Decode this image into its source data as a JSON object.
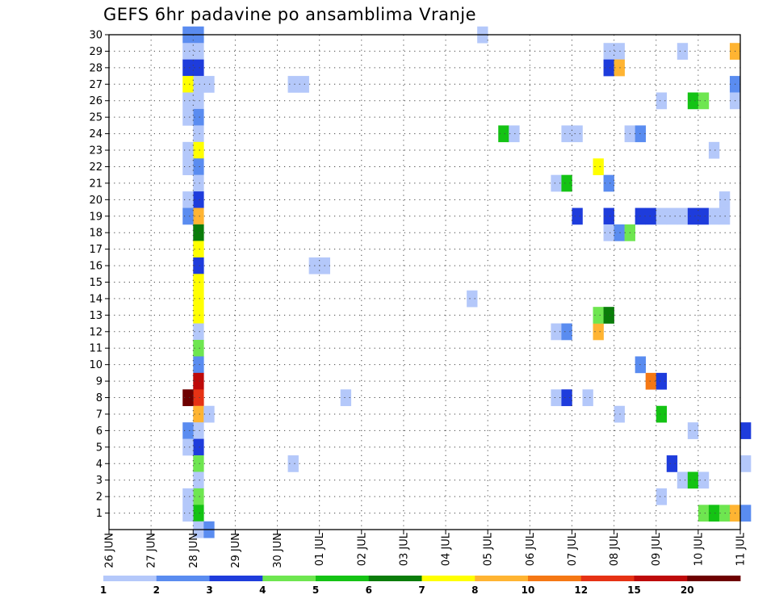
{
  "chart_data": {
    "type": "heatmap",
    "title": "GEFS 6hr padavine po ansamblima Vranje",
    "x_tick_labels": [
      "26 JUN",
      "27 JUN",
      "28 JUN",
      "29 JUN",
      "30 JUN",
      "01 JUL",
      "02 JUL",
      "03 JUL",
      "04 JUL",
      "05 JUL",
      "06 JUL",
      "07 JUL",
      "08 JUL",
      "09 JUL",
      "10 JUL",
      "11 JUL"
    ],
    "y_tick_labels": [
      "1",
      "2",
      "3",
      "4",
      "5",
      "6",
      "7",
      "8",
      "9",
      "10",
      "11",
      "12",
      "13",
      "14",
      "15",
      "16",
      "17",
      "18",
      "19",
      "20",
      "21",
      "22",
      "23",
      "24",
      "25",
      "26",
      "27",
      "28",
      "29",
      "30"
    ],
    "xlabel": "",
    "ylabel": "",
    "ylim": [
      0,
      30
    ],
    "grid": true,
    "steps_per_day": 4,
    "color_levels": [
      {
        "label": "1",
        "color": "#b4c8fa"
      },
      {
        "label": "2",
        "color": "#5a8cf0"
      },
      {
        "label": "3",
        "color": "#1e3cdc"
      },
      {
        "label": "4",
        "color": "#6ee650"
      },
      {
        "label": "5",
        "color": "#14c314"
      },
      {
        "label": "6",
        "color": "#0a7d0a"
      },
      {
        "label": "7",
        "color": "#ffff00"
      },
      {
        "label": "8",
        "color": "#ffb432"
      },
      {
        "label": "10",
        "color": "#f57814"
      },
      {
        "label": "12",
        "color": "#e63214"
      },
      {
        "label": "15",
        "color": "#be0a0a"
      },
      {
        "label": "20",
        "color": "#6e0000"
      }
    ],
    "cells": [
      [
        30,
        8,
        1
      ],
      [
        30,
        7,
        1
      ],
      [
        29,
        8,
        0
      ],
      [
        29,
        7,
        0
      ],
      [
        28,
        8,
        2
      ],
      [
        28,
        7,
        2
      ],
      [
        27,
        8,
        0
      ],
      [
        27,
        7,
        6
      ],
      [
        26,
        8,
        0
      ],
      [
        26,
        7,
        0
      ],
      [
        25,
        8,
        1
      ],
      [
        25,
        7,
        0
      ],
      [
        24,
        8,
        0
      ],
      [
        23,
        8,
        6
      ],
      [
        23,
        7,
        0
      ],
      [
        22,
        8,
        1
      ],
      [
        22,
        7,
        0
      ],
      [
        21,
        8,
        0
      ],
      [
        20,
        8,
        2
      ],
      [
        20,
        7,
        0
      ],
      [
        19,
        8,
        7
      ],
      [
        19,
        7,
        1
      ],
      [
        18,
        8,
        5
      ],
      [
        17,
        8,
        6
      ],
      [
        16,
        8,
        2
      ],
      [
        15,
        8,
        6
      ],
      [
        14,
        8,
        6
      ],
      [
        13,
        8,
        6
      ],
      [
        12,
        8,
        0
      ],
      [
        11,
        8,
        3
      ],
      [
        10,
        8,
        1
      ],
      [
        9,
        8,
        10
      ],
      [
        8,
        8,
        9
      ],
      [
        8,
        7,
        11
      ],
      [
        7,
        8,
        7
      ],
      [
        6,
        8,
        0
      ],
      [
        6,
        7,
        1
      ],
      [
        5,
        8,
        2
      ],
      [
        5,
        7,
        0
      ],
      [
        4,
        8,
        3
      ],
      [
        3,
        8,
        0
      ],
      [
        2,
        8,
        3
      ],
      [
        2,
        7,
        0
      ],
      [
        1,
        8,
        4
      ],
      [
        1,
        7,
        0
      ],
      [
        0,
        8,
        0
      ],
      [
        0,
        9,
        1
      ],
      [
        27,
        9,
        0
      ],
      [
        7,
        9,
        0
      ],
      [
        27,
        17,
        0
      ],
      [
        27,
        18,
        0
      ],
      [
        4,
        17,
        0
      ],
      [
        16,
        19,
        0
      ],
      [
        16,
        20,
        0
      ],
      [
        8,
        22,
        0
      ],
      [
        14,
        34,
        0
      ],
      [
        30,
        35,
        0
      ],
      [
        24,
        37,
        4
      ],
      [
        24,
        38,
        0
      ],
      [
        21,
        42,
        0
      ],
      [
        21,
        43,
        4
      ],
      [
        12,
        42,
        0
      ],
      [
        12,
        43,
        1
      ],
      [
        8,
        42,
        0
      ],
      [
        8,
        43,
        2
      ],
      [
        24,
        43,
        0
      ],
      [
        24,
        44,
        0
      ],
      [
        19,
        44,
        2
      ],
      [
        8,
        45,
        0
      ],
      [
        22,
        46,
        6
      ],
      [
        12,
        46,
        7
      ],
      [
        13,
        46,
        3
      ],
      [
        13,
        47,
        5
      ],
      [
        29,
        47,
        0
      ],
      [
        29,
        48,
        0
      ],
      [
        28,
        47,
        2
      ],
      [
        28,
        48,
        7
      ],
      [
        21,
        47,
        1
      ],
      [
        19,
        47,
        2
      ],
      [
        18,
        47,
        0
      ],
      [
        18,
        48,
        1
      ],
      [
        18,
        49,
        3
      ],
      [
        7,
        48,
        0
      ],
      [
        24,
        49,
        0
      ],
      [
        24,
        50,
        1
      ],
      [
        19,
        50,
        2
      ],
      [
        19,
        51,
        2
      ],
      [
        19,
        52,
        0
      ],
      [
        19,
        53,
        0
      ],
      [
        19,
        54,
        0
      ],
      [
        19,
        55,
        2
      ],
      [
        19,
        56,
        2
      ],
      [
        19,
        57,
        0
      ],
      [
        10,
        50,
        1
      ],
      [
        9,
        51,
        8
      ],
      [
        9,
        52,
        2
      ],
      [
        7,
        52,
        4
      ],
      [
        26,
        52,
        0
      ],
      [
        2,
        52,
        0
      ],
      [
        4,
        53,
        2
      ],
      [
        3,
        54,
        0
      ],
      [
        3,
        55,
        4
      ],
      [
        3,
        56,
        0
      ],
      [
        6,
        55,
        0
      ],
      [
        29,
        54,
        0
      ],
      [
        26,
        55,
        4
      ],
      [
        26,
        56,
        3
      ],
      [
        1,
        56,
        3
      ],
      [
        1,
        57,
        4
      ],
      [
        1,
        58,
        3
      ],
      [
        1,
        59,
        7
      ],
      [
        1,
        60,
        1
      ],
      [
        29,
        59,
        7
      ],
      [
        27,
        59,
        1
      ],
      [
        26,
        59,
        0
      ],
      [
        23,
        57,
        0
      ],
      [
        20,
        58,
        0
      ],
      [
        19,
        58,
        0
      ],
      [
        6,
        60,
        2
      ],
      [
        4,
        60,
        0
      ]
    ]
  }
}
